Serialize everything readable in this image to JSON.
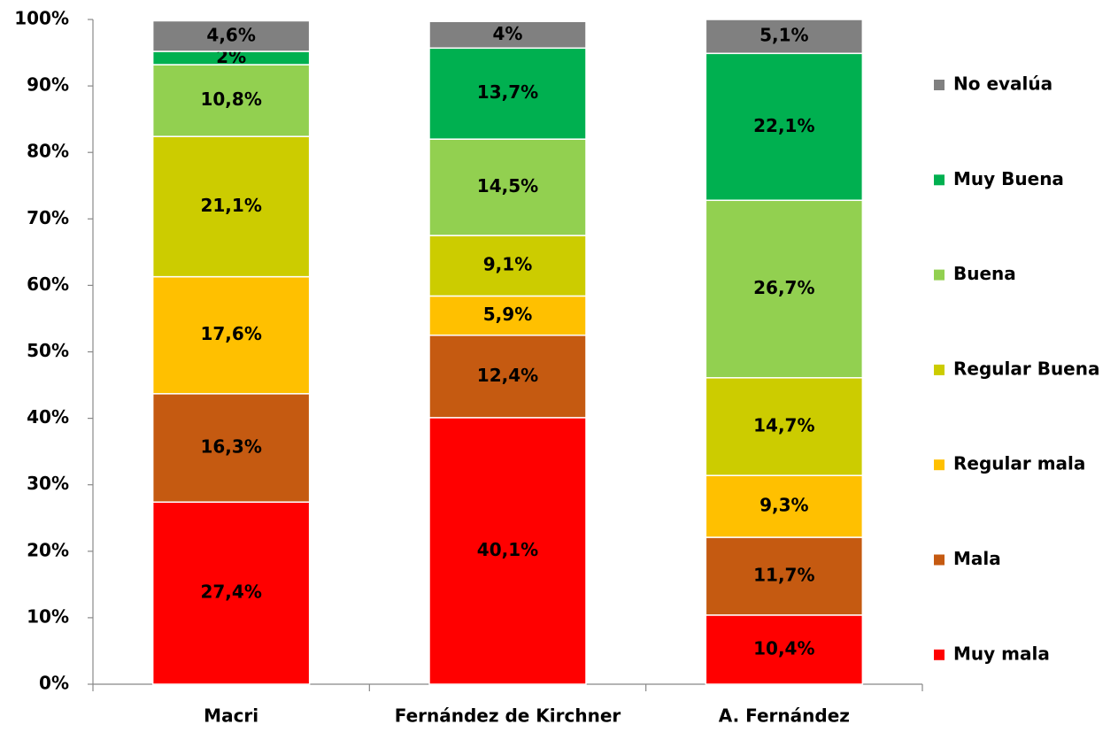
{
  "chart_data": {
    "type": "stacked_bar",
    "categories": [
      "Macri",
      "Fernández de Kirchner",
      "A. Fernández"
    ],
    "series": [
      {
        "name": "Muy mala",
        "color": "#ff0000",
        "values": [
          27.4,
          40.1,
          10.4
        ],
        "value_labels": [
          "27,4%",
          "40,1%",
          "10,4%"
        ]
      },
      {
        "name": "Mala",
        "color": "#c55a11",
        "values": [
          16.3,
          12.4,
          11.7
        ],
        "value_labels": [
          "16,3%",
          "12,4%",
          "11,7%"
        ]
      },
      {
        "name": "Regular mala",
        "color": "#ffc000",
        "values": [
          17.6,
          5.9,
          9.3
        ],
        "value_labels": [
          "17,6%",
          "5,9%",
          "9,3%"
        ]
      },
      {
        "name": "Regular Buena",
        "color": "#cccc00",
        "values": [
          21.1,
          9.1,
          14.7
        ],
        "value_labels": [
          "21,1%",
          "9,1%",
          "14,7%"
        ]
      },
      {
        "name": "Buena",
        "color": "#92d050",
        "values": [
          10.8,
          14.5,
          26.7
        ],
        "value_labels": [
          "10,8%",
          "14,5%",
          "26,7%"
        ]
      },
      {
        "name": "Muy Buena",
        "color": "#00b050",
        "values": [
          2,
          13.7,
          22.1
        ],
        "value_labels": [
          "2%",
          "13,7%",
          "22,1%"
        ]
      },
      {
        "name": "No evalúa",
        "color": "#808080",
        "values": [
          4.6,
          4,
          5.1
        ],
        "value_labels": [
          "4,6%",
          "4%",
          "5,1%"
        ]
      }
    ],
    "ylim": [
      0,
      100
    ],
    "yticks": [
      {
        "value": 0,
        "label": "0%"
      },
      {
        "value": 10,
        "label": "10%"
      },
      {
        "value": 20,
        "label": "20%"
      },
      {
        "value": 30,
        "label": "30%"
      },
      {
        "value": 40,
        "label": "40%"
      },
      {
        "value": 50,
        "label": "50%"
      },
      {
        "value": 60,
        "label": "60%"
      },
      {
        "value": 70,
        "label": "70%"
      },
      {
        "value": 80,
        "label": "80%"
      },
      {
        "value": 90,
        "label": "90%"
      },
      {
        "value": 100,
        "label": "100%"
      }
    ],
    "legend": "right",
    "grid": false
  }
}
